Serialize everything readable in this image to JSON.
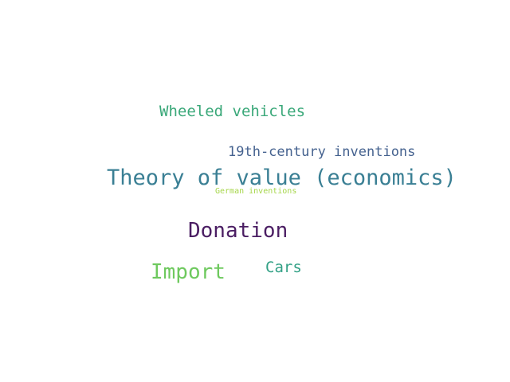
{
  "word_cloud": {
    "words": [
      {
        "text": "Wheeled vehicles",
        "color": "#3aa879"
      },
      {
        "text": "19th-century inventions",
        "color": "#45628f"
      },
      {
        "text": "Theory of value (economics)",
        "color": "#3a7f94"
      },
      {
        "text": "German inventions",
        "color": "#a6d64a"
      },
      {
        "text": "Donation",
        "color": "#4b1e63"
      },
      {
        "text": "Import",
        "color": "#6ec95e"
      },
      {
        "text": "Cars",
        "color": "#33a186"
      }
    ]
  }
}
